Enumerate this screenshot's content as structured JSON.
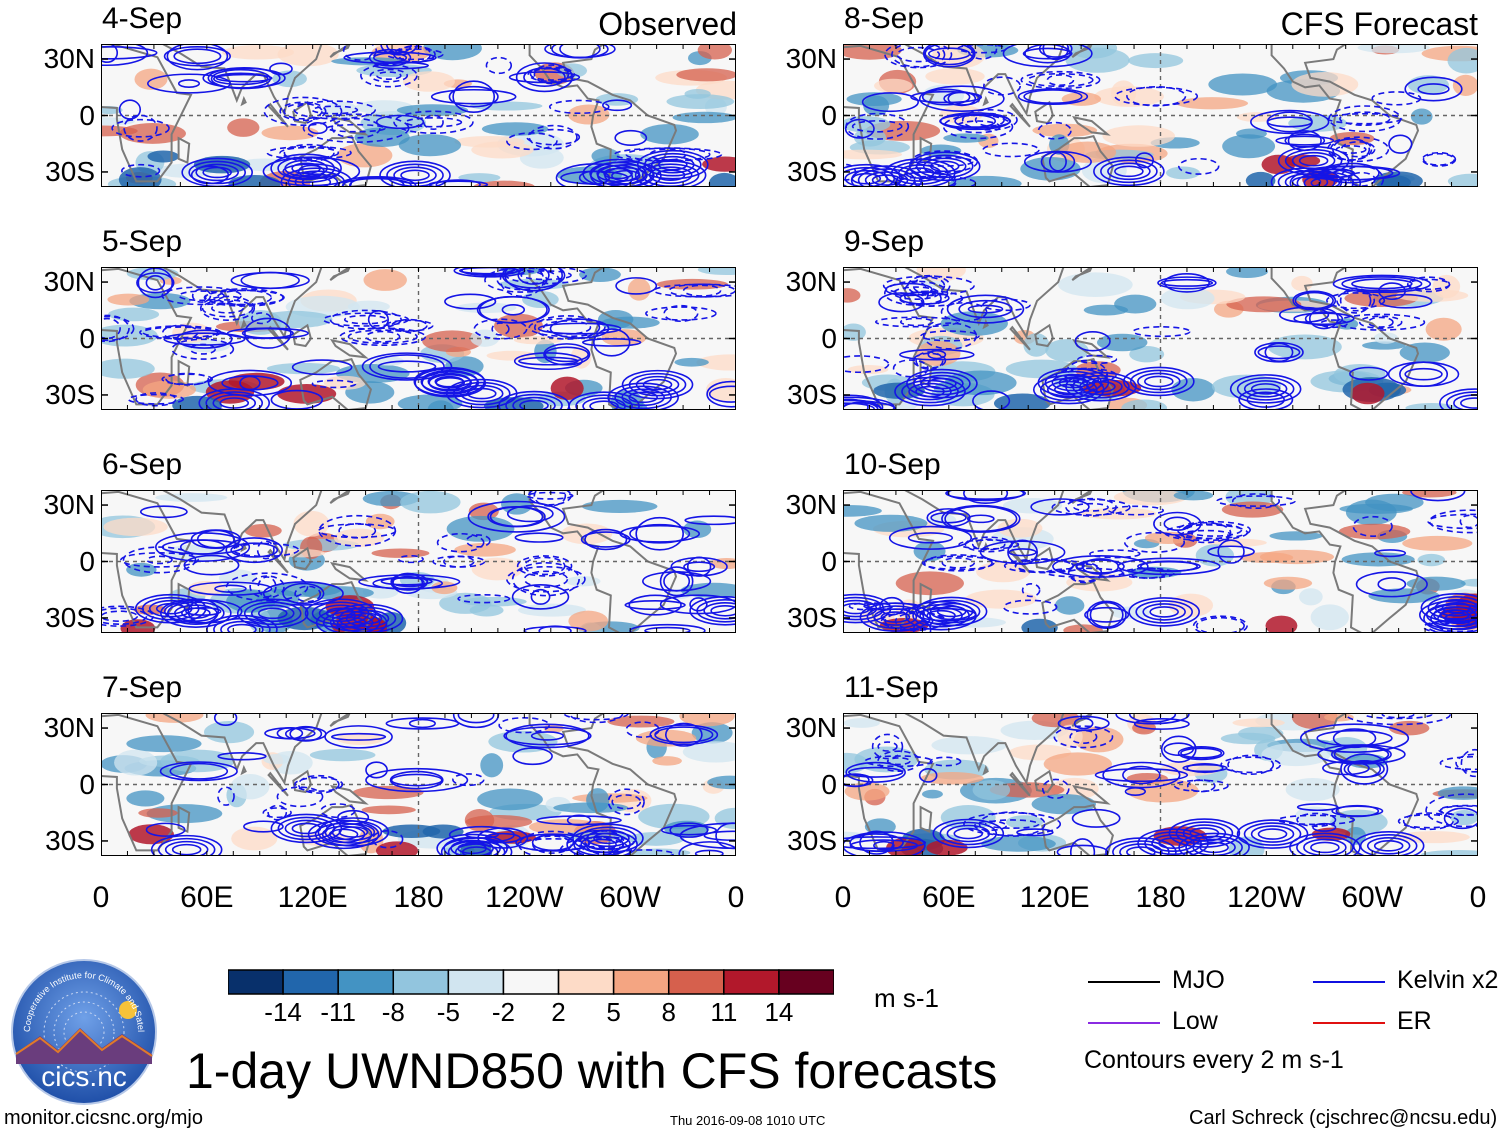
{
  "headings": {
    "left": "Observed",
    "right": "CFS Forecast"
  },
  "panels": [
    {
      "date": "4-Sep",
      "group": "observed"
    },
    {
      "date": "5-Sep",
      "group": "observed"
    },
    {
      "date": "6-Sep",
      "group": "observed"
    },
    {
      "date": "7-Sep",
      "group": "observed"
    },
    {
      "date": "8-Sep",
      "group": "forecast"
    },
    {
      "date": "9-Sep",
      "group": "forecast"
    },
    {
      "date": "10-Sep",
      "group": "forecast"
    },
    {
      "date": "11-Sep",
      "group": "forecast"
    }
  ],
  "lat_labels": [
    "30N",
    "0",
    "30S"
  ],
  "lon_labels": [
    "0",
    "60E",
    "120E",
    "180",
    "120W",
    "60W",
    "0"
  ],
  "colorbar": {
    "labels": [
      "-14",
      "-11",
      "-8",
      "-5",
      "-2",
      "2",
      "5",
      "8",
      "11",
      "14"
    ],
    "colors": [
      "#08306b",
      "#2166ac",
      "#4393c3",
      "#92c5de",
      "#d1e5f0",
      "#f7f7f7",
      "#fddbc7",
      "#f4a582",
      "#d6604d",
      "#b2182b",
      "#67001f"
    ],
    "units": "m s-1"
  },
  "legend": {
    "items": [
      {
        "label": "MJO",
        "color": "#000000"
      },
      {
        "label": "Kelvin x2",
        "color": "#1010e0"
      },
      {
        "label": "Low",
        "color": "#8a2be2"
      },
      {
        "label": "ER",
        "color": "#e01010"
      }
    ],
    "note": "Contours every 2 m s-1"
  },
  "title": "1-day UWND850 with CFS forecasts",
  "logo_text": "cics.nc",
  "logo_ring_text": "Cooperative Institute for Climate and Satellites",
  "footer": {
    "url": "monitor.cicsnc.org/mjo",
    "timestamp": "Thu 2016-09-08 1010 UTC",
    "credit": "Carl Schreck (cjschrec@ncsu.edu)"
  }
}
